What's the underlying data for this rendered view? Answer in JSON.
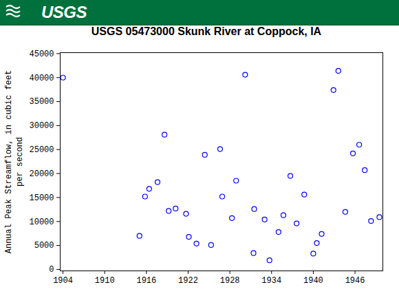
{
  "chart_data": {
    "type": "scatter",
    "logo_text": "USGS",
    "title": "USGS 05473000 Skunk River at Coppock, IA",
    "y_label": "Annual Peak Streamflow, in cubic feet\nper second",
    "x": [
      1904.0,
      1915.0,
      1915.8,
      1916.4,
      1917.6,
      1918.6,
      1919.2,
      1920.2,
      1921.7,
      1922.1,
      1923.2,
      1924.4,
      1925.3,
      1926.6,
      1926.9,
      1928.3,
      1928.9,
      1930.2,
      1931.4,
      1931.5,
      1933.0,
      1933.7,
      1935.0,
      1935.7,
      1936.7,
      1937.6,
      1938.7,
      1940.0,
      1940.5,
      1941.2,
      1942.9,
      1943.6,
      1944.6,
      1945.7,
      1946.6,
      1947.4,
      1948.3,
      1949.5
    ],
    "values": [
      40000,
      7000,
      15200,
      16800,
      18200,
      28100,
      12200,
      12700,
      11600,
      6800,
      5400,
      23900,
      5100,
      25100,
      15200,
      10700,
      18500,
      40600,
      3400,
      12600,
      10400,
      1900,
      7800,
      11300,
      19500,
      9600,
      15600,
      3300,
      5500,
      7400,
      37400,
      41400,
      12000,
      24200,
      26000,
      20700,
      10100,
      10900
    ],
    "color": "#0000ff",
    "marker": "circle",
    "xlim": [
      1903.6,
      1950.0
    ],
    "ylim": [
      -300,
      45200
    ],
    "xticks": [
      1904,
      1910,
      1916,
      1922,
      1928,
      1934,
      1940,
      1946
    ],
    "yticks": [
      0,
      5000,
      10000,
      15000,
      20000,
      25000,
      30000,
      35000,
      40000,
      45000
    ],
    "grid": false
  }
}
